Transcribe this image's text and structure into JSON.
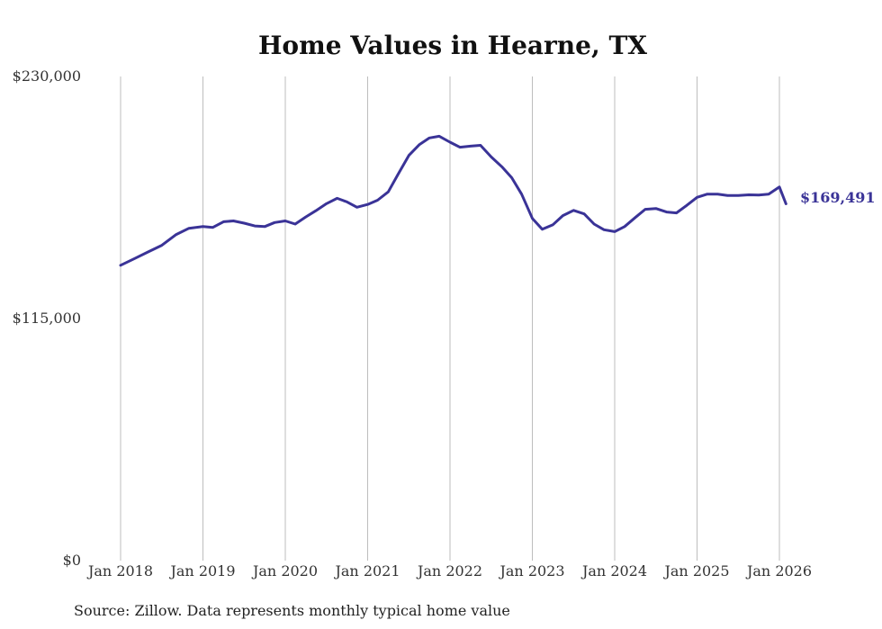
{
  "chart_data": {
    "type": "line",
    "title": "Home Values in Hearne, TX",
    "xlabel": "",
    "ylabel": "",
    "ylim": [
      0,
      230000
    ],
    "grid": "vertical",
    "y_ticks": [
      {
        "value": 230000,
        "label": "$230,000"
      },
      {
        "value": 115000,
        "label": "$115,000"
      },
      {
        "value": 0,
        "label": "$0"
      }
    ],
    "x_ticks": [
      {
        "value": 2018.0,
        "label": "Jan 2018"
      },
      {
        "value": 2019.0,
        "label": "Jan 2019"
      },
      {
        "value": 2020.0,
        "label": "Jan 2020"
      },
      {
        "value": 2021.0,
        "label": "Jan 2021"
      },
      {
        "value": 2022.0,
        "label": "Jan 2022"
      },
      {
        "value": 2023.0,
        "label": "Jan 2023"
      },
      {
        "value": 2024.0,
        "label": "Jan 2024"
      },
      {
        "value": 2025.0,
        "label": "Jan 2025"
      },
      {
        "value": 2026.0,
        "label": "Jan 2026"
      }
    ],
    "xlim": [
      2018.0,
      2026.1
    ],
    "series": [
      {
        "name": "Typical home value",
        "color": "#3a3397",
        "x": [
          2018.0,
          2018.17,
          2018.33,
          2018.5,
          2018.67,
          2018.83,
          2019.0,
          2019.12,
          2019.25,
          2019.37,
          2019.5,
          2019.63,
          2019.75,
          2019.87,
          2020.0,
          2020.12,
          2020.25,
          2020.37,
          2020.5,
          2020.63,
          2020.75,
          2020.87,
          2021.0,
          2021.12,
          2021.25,
          2021.37,
          2021.5,
          2021.63,
          2021.75,
          2021.87,
          2022.0,
          2022.12,
          2022.25,
          2022.37,
          2022.5,
          2022.63,
          2022.75,
          2022.87,
          2023.0,
          2023.12,
          2023.25,
          2023.37,
          2023.5,
          2023.63,
          2023.75,
          2023.87,
          2024.0,
          2024.12,
          2024.25,
          2024.37,
          2024.5,
          2024.63,
          2024.75,
          2024.87,
          2025.0,
          2025.12,
          2025.25,
          2025.37,
          2025.5,
          2025.63,
          2025.75,
          2025.87,
          2026.0,
          2026.08
        ],
        "values": [
          140300,
          143500,
          146600,
          149800,
          154800,
          157900,
          158700,
          158300,
          161000,
          161400,
          160300,
          159000,
          158700,
          160600,
          161400,
          159900,
          163300,
          166200,
          169600,
          172100,
          170400,
          167900,
          169200,
          171200,
          175200,
          183600,
          192500,
          197700,
          200800,
          201600,
          198800,
          196400,
          196900,
          197300,
          191800,
          187100,
          181900,
          174100,
          162600,
          157400,
          159600,
          163900,
          166400,
          164700,
          159900,
          157200,
          156300,
          158700,
          163000,
          166900,
          167300,
          165600,
          165200,
          168600,
          172600,
          174100,
          174100,
          173500,
          173500,
          173800,
          173700,
          174100,
          177500,
          169491
        ]
      }
    ],
    "end_label": "$169,491",
    "source": "Source: Zillow. Data represents monthly typical home value"
  }
}
